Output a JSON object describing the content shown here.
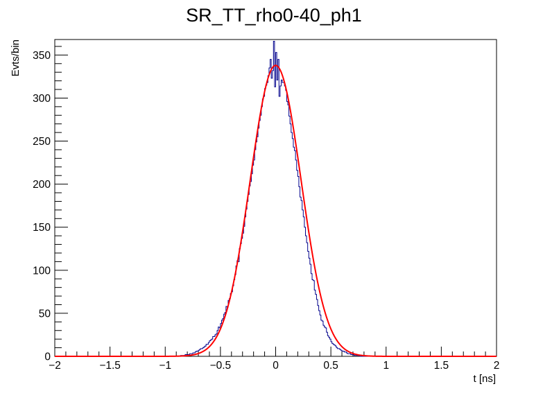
{
  "chart_data": {
    "type": "histogram",
    "title": "SR_TT_rho0-40_ph1",
    "xlabel": "t [ns]",
    "ylabel": "Evts/bin",
    "xlim": [
      -2,
      2
    ],
    "ylim": [
      0,
      368
    ],
    "grid": false,
    "legend": "none",
    "x_ticks": [
      -2,
      -1.5,
      -1,
      -0.5,
      0,
      0.5,
      1,
      1.5,
      2
    ],
    "x_tick_labels": [
      "−2",
      "−1.5",
      "−1",
      "−0.5",
      "0",
      "0.5",
      "1",
      "1.5",
      "2"
    ],
    "y_ticks": [
      0,
      50,
      100,
      150,
      200,
      250,
      300,
      350
    ],
    "y_tick_labels": [
      "0",
      "50",
      "100",
      "150",
      "200",
      "250",
      "300",
      "350"
    ],
    "bin_width": 0.01,
    "histogram": {
      "color": "#00008b",
      "x_start": -1.0,
      "counts": [
        0,
        0,
        0,
        0,
        0,
        0,
        0,
        0,
        0,
        0,
        0,
        0,
        0,
        0,
        1,
        1,
        1,
        1,
        2,
        2,
        2,
        2,
        3,
        3,
        3,
        4,
        4,
        5,
        6,
        6,
        7,
        8,
        9,
        9,
        10,
        11,
        12,
        14,
        14,
        16,
        18,
        19,
        20,
        23,
        23,
        25,
        26,
        30,
        34,
        33,
        38,
        42,
        44,
        49,
        51,
        58,
        57,
        65,
        67,
        73,
        75,
        82,
        89,
        95,
        105,
        111,
        110,
        125,
        131,
        137,
        143,
        151,
        162,
        171,
        180,
        188,
        198,
        203,
        212,
        222,
        228,
        240,
        249,
        255,
        265,
        274,
        280,
        290,
        299,
        302,
        311,
        315,
        318,
        326,
        335,
        345,
        323,
        332,
        366,
        313,
        353,
        321,
        345,
        302,
        314,
        321,
        318,
        318,
        314,
        309,
        296,
        292,
        279,
        270,
        260,
        253,
        243,
        239,
        228,
        216,
        209,
        197,
        185,
        181,
        170,
        162,
        150,
        140,
        132,
        122,
        114,
        107,
        96,
        89,
        88,
        77,
        72,
        66,
        59,
        53,
        48,
        42,
        41,
        36,
        34,
        33,
        28,
        24,
        22,
        20,
        17,
        15,
        14,
        13,
        12,
        10,
        9,
        9,
        8,
        7,
        6,
        6,
        5,
        5,
        4,
        3,
        3,
        3,
        2,
        2,
        2,
        1,
        1,
        1,
        1,
        1,
        0,
        0,
        0,
        0,
        0,
        0,
        0,
        0,
        0,
        0,
        0,
        0,
        0,
        0,
        0,
        0,
        0,
        0,
        0,
        0,
        0,
        0,
        0,
        0
      ]
    },
    "fit": {
      "type": "gaussian",
      "color": "#ff0000",
      "amplitude": 338,
      "mean": 0.0,
      "sigma": 0.23
    }
  }
}
